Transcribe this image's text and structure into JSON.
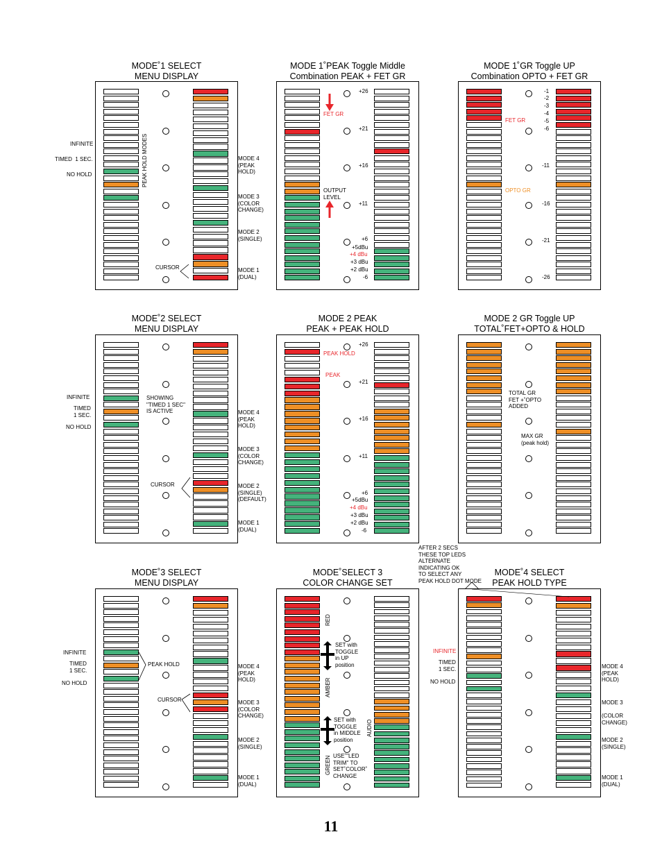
{
  "page_number": "11",
  "colors": {
    "red": "#e8262b",
    "amber": "#ee8f26",
    "green": "#45b37c"
  },
  "panels": [
    {
      "id": "p1",
      "title": [
        "MODE˚1 SELECT",
        "MENU DISPLAY"
      ],
      "left": "wwwwwwwwwwwwgwowgwwwwwwwwwwww",
      "right": "rowwwwwwwgwwwwgwwwwgwwwwrowr",
      "labels": [
        [
          "INFINITE",
          101,
          203
        ],
        [
          "TIMED  1 SEC.",
          79,
          225
        ],
        [
          "NO HOLD",
          96,
          247
        ],
        [
          "MODE 4\n(PEAK\nHOLD)",
          343,
          224
        ],
        [
          "MODE 3\n(COLOR\nCHANGE)",
          343,
          279
        ],
        [
          "MODE 2\n(SINGLE)",
          343,
          330
        ],
        [
          "CURSOR",
          224,
          381
        ],
        [
          "MODE 1\n(DUAL)",
          343,
          385
        ]
      ],
      "vlabels": [
        [
          "PEAK HOLD MODES",
          204,
          270
        ]
      ]
    },
    {
      "id": "p2",
      "title": [
        "MODE 1˚PEAK Toggle Middle",
        "Combination PEAK + FET GR"
      ],
      "left": "wwwwwwrwwwwwwwooggggggggggggg",
      "right": "wwwwwwwwwrwwwwwwwwwwwwwwggggg",
      "labels": [
        [
          "+26",
          517,
          127
        ],
        [
          "FET GR",
          466,
          160,
          "red"
        ],
        [
          "+21",
          517,
          181
        ],
        [
          "+16",
          517,
          234
        ],
        [
          "OUTPUT\nLEVEL",
          466,
          270
        ],
        [
          "+11",
          517,
          289
        ],
        [
          "+6",
          521,
          340
        ],
        [
          "+5dBu",
          507,
          352
        ],
        [
          "+4 dBu",
          504,
          362,
          "red"
        ],
        [
          "+3 dBu",
          505,
          373
        ],
        [
          "+2 dBu",
          505,
          384
        ],
        [
          "-6",
          523,
          395
        ]
      ],
      "vlabels": []
    },
    {
      "id": "p3",
      "title": [
        "MODE 1˚GR Toggle UP",
        "Combination OPTO + FET GR"
      ],
      "left": "rrrrrwwwwwwwwwowwwwwwwwwwwwww",
      "right": "rrrrrrwwwwwwwwowwwwwwwwwwwwww",
      "labels": [
        [
          "-1",
          784,
          127
        ],
        [
          "-2",
          784,
          137
        ],
        [
          "-3",
          784,
          148
        ],
        [
          "-4",
          784,
          159
        ],
        [
          "-5",
          784,
          170
        ],
        [
          "FET GR",
          728,
          169,
          "red"
        ],
        [
          "-6",
          784,
          181
        ],
        [
          "-11",
          781,
          234
        ],
        [
          "OPTO GR",
          728,
          270,
          "orn"
        ],
        [
          "-16",
          781,
          289
        ],
        [
          "-21",
          781,
          342
        ],
        [
          "-26",
          781,
          395
        ]
      ],
      "vlabels": []
    },
    {
      "id": "p4",
      "title": [
        "MODE˚2 SELECT",
        "MENU DISPLAY"
      ],
      "left": "wwwwwwwwgwowgwwwwwwwwwwwwwwww",
      "right": "rowwwwwwwwgwwwwwgwwwrowwwwgw",
      "labels": [
        [
          "INFINITE",
          96,
          568
        ],
        [
          "TIMED\n1 SEC.",
          106,
          584
        ],
        [
          "NO HOLD",
          95,
          611
        ],
        [
          "SHOWING\n\"TIMED 1 SEC\"\nIS ACTIVE",
          211,
          569
        ],
        [
          "MODE 4\n(PEAK\nHOLD)",
          343,
          590
        ],
        [
          "MODE 3\n(COLOR\nCHANGE)",
          343,
          643
        ],
        [
          "CURSOR",
          217,
          694
        ],
        [
          "MODE 2\n(SINGLE)\n(DEFAULT)",
          343,
          696
        ],
        [
          "MODE 1\n(DUAL)",
          343,
          749
        ]
      ],
      "vlabels": []
    },
    {
      "id": "p5",
      "title": [
        "MODE 2 PEAK",
        "PEAK + PEAK HOLD"
      ],
      "left": "wrwwwrrroooooooogggggggggggg",
      "right": "wwwwwwrwwwooooooogggggggggggg",
      "labels": [
        [
          "+26",
          517,
          492
        ],
        [
          "PEAK HOLD",
          466,
          505,
          "red"
        ],
        [
          "PEAK",
          469,
          536,
          "red"
        ],
        [
          "+21",
          517,
          546
        ],
        [
          "+16",
          517,
          599
        ],
        [
          "+11",
          517,
          653
        ],
        [
          "+6",
          521,
          706
        ],
        [
          "+5dBu",
          507,
          716
        ],
        [
          "+4 dBu",
          504,
          727,
          "red"
        ],
        [
          "+3 dBu",
          505,
          738
        ],
        [
          "+2 dBu",
          505,
          749
        ],
        [
          "-6",
          521,
          760
        ]
      ],
      "vlabels": []
    },
    {
      "id": "p6",
      "title": [
        "MODE 2 GR Toggle UP",
        "TOTAL˚FET+OPTO & HOLD"
      ],
      "left": "oooooooowwwwowwwwwwwwwwwwwwww",
      "right": "oooooooowwwwwowwwwwwwwwwwwwww",
      "labels": [
        [
          "TOTAL GR\nFET +˚OPTO\nADDED",
          733,
          562
        ],
        [
          "MAX GR\n(peak hold)",
          751,
          624
        ]
      ],
      "vlabels": []
    },
    {
      "id": "p7",
      "title": [
        "MODE˚3 SELECT",
        "MENU DISPLAY"
      ],
      "left": "wwwwwwwwgwowgwwwwwwwwwwwwwwww",
      "right": "rowwwwwwwgwwwwrorwwwgwwwwwgw",
      "labels": [
        [
          "INFINITE",
          91,
          936
        ],
        [
          "TIMED\n1 SEC.",
          100,
          952
        ],
        [
          "NO HOLD",
          89,
          980
        ],
        [
          "PEAK HOLD",
          213,
          953
        ],
        [
          "MODE 4\n(PEAK\nHOLD)",
          343,
          956
        ],
        [
          "CURSOR",
          227,
          1004
        ],
        [
          "MODE 3\n(COLOR\nCHANGE)",
          343,
          1008
        ],
        [
          "MODE 2\n(SINGLE)",
          343,
          1062
        ],
        [
          "MODE 1\n(DUAL)",
          343,
          1116
        ]
      ],
      "vlabels": []
    },
    {
      "id": "p8",
      "title": [
        "MODE˚SELECT 3",
        "COLOR CHANGE SET"
      ],
      "left": "rrrrrrrrroooooooooogggggggggg",
      "right": "wwwwwwwwwwwwwwwwoooogggggggggg",
      "labels": [
        [
          "SET with\nTOGGLE\nin UP\nposition",
          483,
          925
        ],
        [
          "SET with\nTOGGLE\nin MIDDLE\nposition",
          481,
          1033
        ],
        [
          "USE˚\"LED\nTRIM\" TO\nSET˚COLOR˚\nCHANGE",
          480,
          1085
        ]
      ],
      "vlabels": [
        [
          "RED",
          468,
          902
        ],
        [
          "AMBER",
          468,
          1005
        ],
        [
          "AUDIO",
          528,
          1062
        ],
        [
          "GREEN",
          468,
          1117
        ]
      ]
    },
    {
      "id": "p9",
      "title": [
        "MODE˚4 SELECT",
        "PEAK HOLD TYPE"
      ],
      "left": "rowwwwwwwowwgwgwwwwwwwwwwwwwww",
      "right": "rowwwwwwrwrwwwgwwwwwgwwwwwgw",
      "labels": [
        [
          "INFINITE",
          624,
          934,
          "red"
        ],
        [
          "TIMED\n1 SEC.",
          632,
          950
        ],
        [
          "NO HOLD",
          620,
          978
        ],
        [
          "MODE 4\n(PEAK\nHOLD)",
          867,
          956
        ],
        [
          "MODE 3\n\n(COLOR\nCHANGE)",
          867,
          1008
        ],
        [
          "MODE 2\n(SINGLE)",
          867,
          1062
        ],
        [
          "MODE 1\n(DUAL)",
          867,
          1116
        ]
      ],
      "vlabels": []
    }
  ],
  "note": "AFTER 2 SECS\nTHESE TOP LEDS\nALTERNATE\nINDICATING OK\nTO SELECT ANY\nPEAK HOLD DOT MODE"
}
